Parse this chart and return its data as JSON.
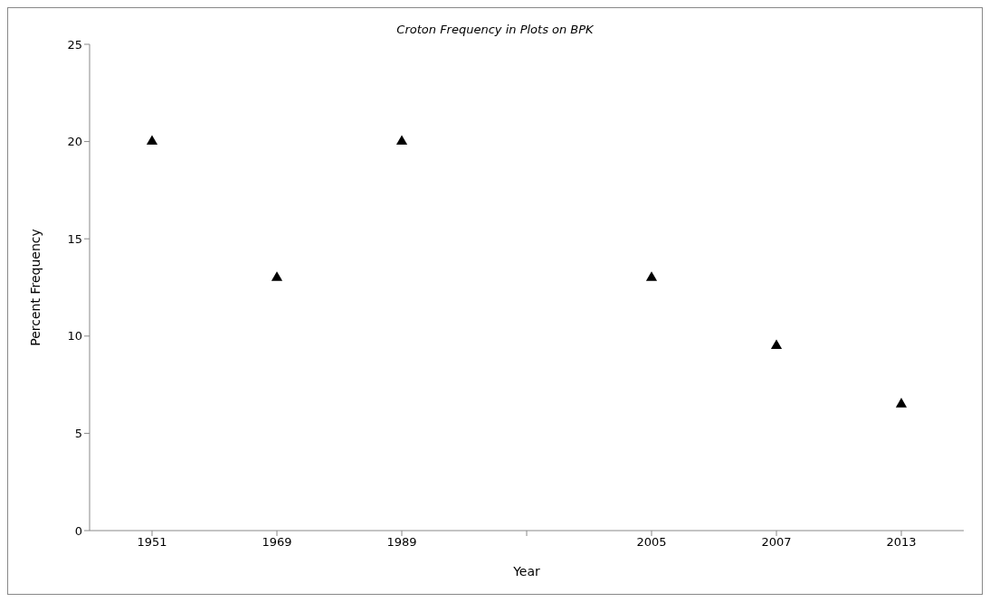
{
  "chart_data": {
    "type": "scatter",
    "title": "Croton Frequency in Plots on BPK",
    "xlabel": "Year",
    "ylabel": "Percent Frequency",
    "categories": [
      "1951",
      "1969",
      "1989",
      null,
      "2005",
      "2007",
      "2013"
    ],
    "series": [
      {
        "color": "#000000",
        "values": [
          20,
          13,
          20,
          null,
          13,
          9.5,
          6.5
        ]
      }
    ],
    "ylim": [
      0,
      25
    ],
    "yticks": [
      0,
      5,
      10,
      15,
      20,
      25
    ],
    "marker": "triangle",
    "grid": false,
    "legend": false
  }
}
